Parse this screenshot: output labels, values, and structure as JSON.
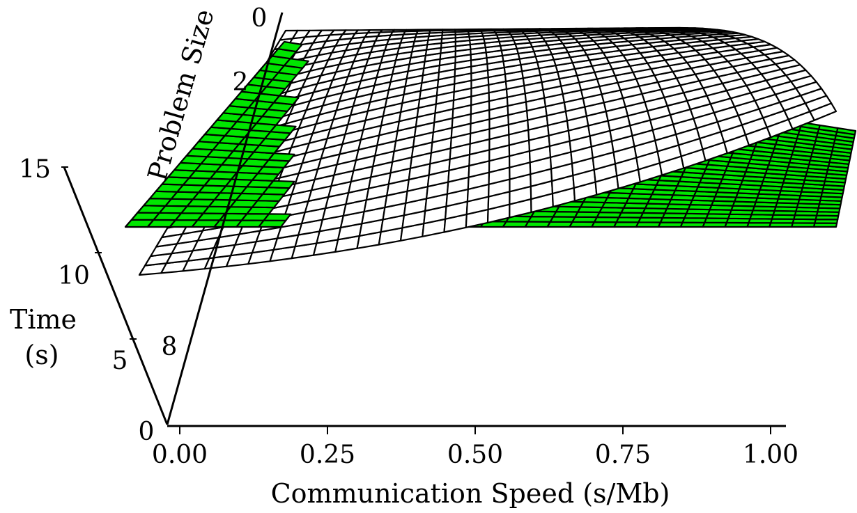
{
  "chart_data": {
    "type": "surface3d",
    "title": "",
    "x_axis": {
      "label": "Communication Speed (s/Mb)",
      "ticks": [
        "0.00",
        "0.25",
        "0.50",
        "0.75",
        "1.00"
      ],
      "range": [
        0,
        1
      ]
    },
    "y_axis": {
      "label": "Problem Size",
      "ticks": [
        "0",
        "2",
        "8"
      ],
      "range": [
        0,
        10
      ]
    },
    "z_axis": {
      "label_line1": "Time",
      "label_line2": "(s)",
      "ticks": [
        "0",
        "5",
        "10",
        "15"
      ],
      "range": [
        0,
        15
      ]
    },
    "surfaces": [
      {
        "model": "curved",
        "fill": "#ffffff",
        "stroke": "#000000"
      },
      {
        "model": "planar",
        "fill": "#00e600",
        "stroke": "#000000"
      }
    ],
    "colors": {
      "highlight": "#00e600",
      "mesh": "#000000",
      "background": "#ffffff"
    }
  }
}
